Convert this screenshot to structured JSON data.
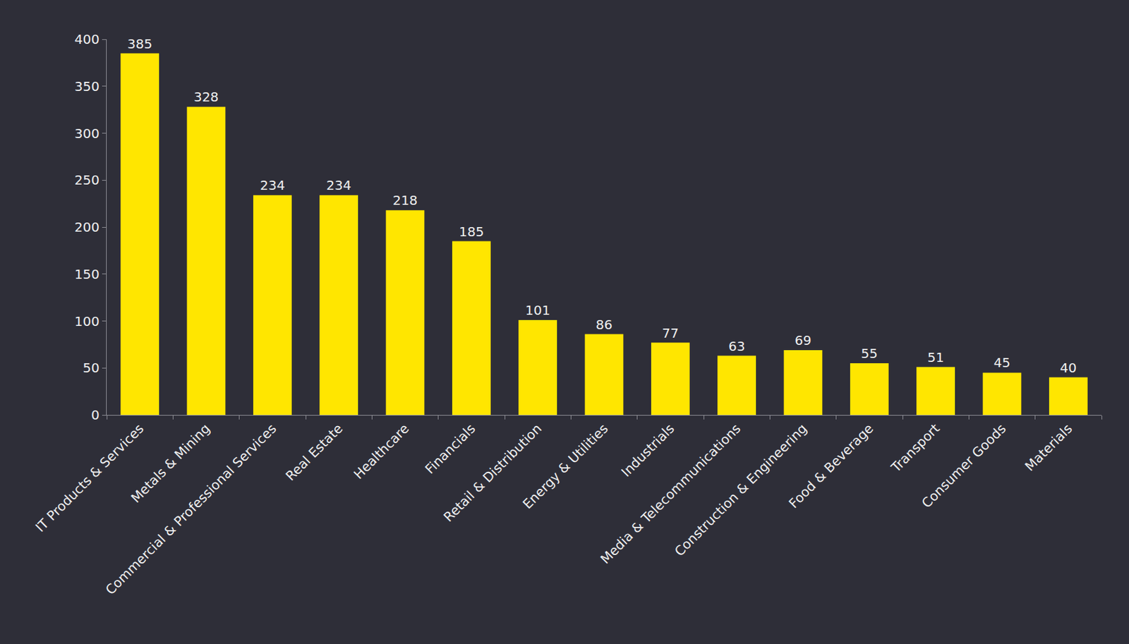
{
  "chart_data": {
    "type": "bar",
    "categories": [
      "IT Products & Services",
      "Metals & Mining",
      "Commercial & Professional Services",
      "Real Estate",
      "Healthcare",
      "Financials",
      "Retail & Distribution",
      "Energy & Utilities",
      "Industrials",
      "Media & Telecommunications",
      "Construction & Engineering",
      "Food & Beverage",
      "Transport",
      "Consumer Goods",
      "Materials"
    ],
    "values": [
      385,
      328,
      234,
      234,
      218,
      185,
      101,
      86,
      77,
      63,
      69,
      55,
      51,
      45,
      40
    ],
    "color": "#ffe600",
    "ylim": [
      0,
      400
    ],
    "yticks": [
      0,
      50,
      100,
      150,
      200,
      250,
      300,
      350,
      400
    ],
    "grid": false,
    "data_labels": true
  }
}
